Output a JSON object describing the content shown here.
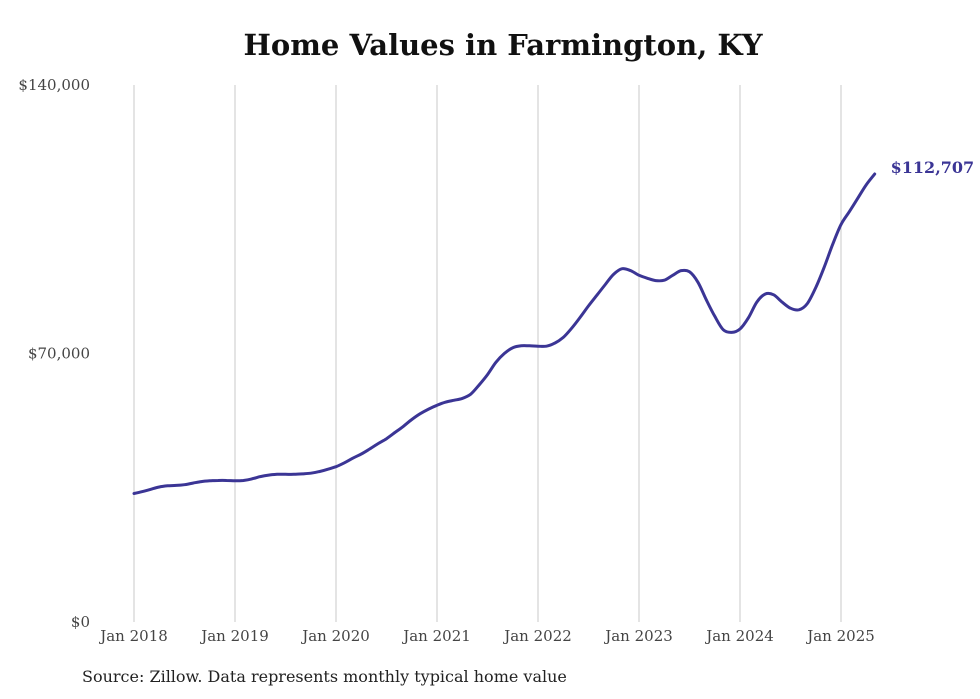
{
  "chart_data": {
    "type": "line",
    "title": "Home Values in Farmington, KY",
    "xlabel": "",
    "ylabel": "",
    "ylim": [
      0,
      140000
    ],
    "yticks": [
      0,
      70000,
      140000
    ],
    "ytick_labels": [
      "$0",
      "$70,000",
      "$140,000"
    ],
    "xticks": [
      "2018-01",
      "2019-01",
      "2020-01",
      "2021-01",
      "2022-01",
      "2023-01",
      "2024-01",
      "2025-01"
    ],
    "xtick_labels": [
      "Jan 2018",
      "Jan 2019",
      "Jan 2020",
      "Jan 2021",
      "Jan 2022",
      "Jan 2023",
      "Jan 2024",
      "Jan 2025"
    ],
    "grid": "vertical",
    "line_color": "#3b3595",
    "series": [
      {
        "x": [
          "2018-01",
          "2018-02",
          "2018-03",
          "2018-04",
          "2018-05",
          "2018-06",
          "2018-07",
          "2018-08",
          "2018-09",
          "2018-10",
          "2018-11",
          "2018-12",
          "2019-01",
          "2019-02",
          "2019-03",
          "2019-04",
          "2019-05",
          "2019-06",
          "2019-07",
          "2019-08",
          "2019-09",
          "2019-10",
          "2019-11",
          "2019-12",
          "2020-01",
          "2020-02",
          "2020-03",
          "2020-04",
          "2020-05",
          "2020-06",
          "2020-07",
          "2020-08",
          "2020-09",
          "2020-10",
          "2020-11",
          "2020-12",
          "2021-01",
          "2021-02",
          "2021-03",
          "2021-04",
          "2021-05",
          "2021-06",
          "2021-07",
          "2021-08",
          "2021-09",
          "2021-10",
          "2021-11",
          "2021-12",
          "2022-01",
          "2022-02",
          "2022-03",
          "2022-04",
          "2022-05",
          "2022-06",
          "2022-07",
          "2022-08",
          "2022-09",
          "2022-10",
          "2022-11",
          "2022-12",
          "2023-01",
          "2023-02",
          "2023-03",
          "2023-04",
          "2023-05",
          "2023-06",
          "2023-07",
          "2023-08",
          "2023-09",
          "2023-10",
          "2023-11",
          "2023-12",
          "2024-01",
          "2024-02",
          "2024-03",
          "2024-04",
          "2024-05",
          "2024-06",
          "2024-07",
          "2024-08",
          "2024-09",
          "2024-10",
          "2024-11",
          "2024-12",
          "2025-01",
          "2025-02",
          "2025-03",
          "2025-04",
          "2025-05"
        ],
        "values": [
          33500,
          34000,
          34600,
          35200,
          35500,
          35600,
          35800,
          36200,
          36600,
          36800,
          36900,
          36900,
          36800,
          36900,
          37300,
          37900,
          38300,
          38500,
          38500,
          38500,
          38600,
          38800,
          39200,
          39800,
          40500,
          41500,
          42700,
          43800,
          45100,
          46500,
          47800,
          49400,
          51000,
          52800,
          54300,
          55500,
          56500,
          57300,
          57800,
          58300,
          59400,
          61800,
          64500,
          67700,
          70000,
          71500,
          72000,
          72000,
          71900,
          71900,
          72700,
          74200,
          76600,
          79400,
          82400,
          85200,
          88000,
          90700,
          92100,
          91600,
          90400,
          89600,
          89000,
          89100,
          90400,
          91600,
          91300,
          88600,
          84000,
          79700,
          76200,
          75500,
          76400,
          79300,
          83400,
          85500,
          85300,
          83400,
          81800,
          81400,
          83000,
          87200,
          92500,
          98400,
          103600,
          107000,
          110500,
          114000,
          116800
        ],
        "end_label": "$112,707"
      }
    ],
    "source_note": "Source: Zillow. Data represents monthly typical home value"
  }
}
